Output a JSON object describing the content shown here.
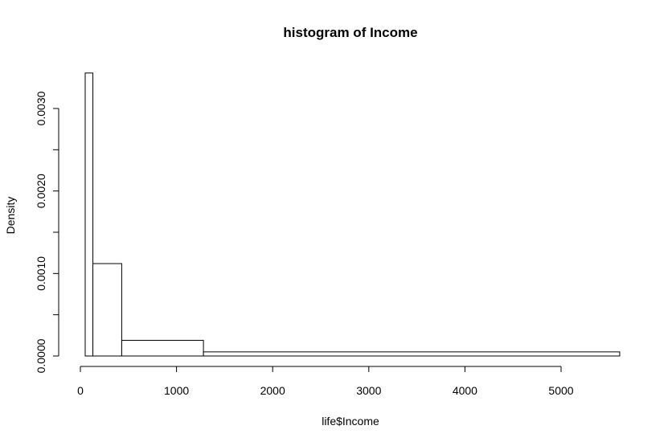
{
  "chart_data": {
    "type": "bar",
    "title": "histogram of Income",
    "xlabel": "life$Income",
    "ylabel": "Density",
    "xlim": [
      0,
      5600
    ],
    "ylim": [
      0,
      0.0035
    ],
    "x_ticks": [
      0,
      1000,
      2000,
      3000,
      4000,
      5000
    ],
    "x_tick_labels": [
      "0",
      "1000",
      "2000",
      "3000",
      "4000",
      "5000"
    ],
    "y_ticks": [
      0,
      0.0005,
      0.001,
      0.0015,
      0.002,
      0.0025,
      0.003
    ],
    "y_tick_labels": [
      "0.0000",
      "",
      "0.0010",
      "",
      "0.0020",
      "",
      "0.0030"
    ],
    "bins": [
      {
        "start": 50,
        "end": 130,
        "density": 0.00343
      },
      {
        "start": 130,
        "end": 430,
        "density": 0.00112
      },
      {
        "start": 430,
        "end": 1280,
        "density": 0.00019
      },
      {
        "start": 1280,
        "end": 5610,
        "density": 5e-05
      }
    ]
  }
}
